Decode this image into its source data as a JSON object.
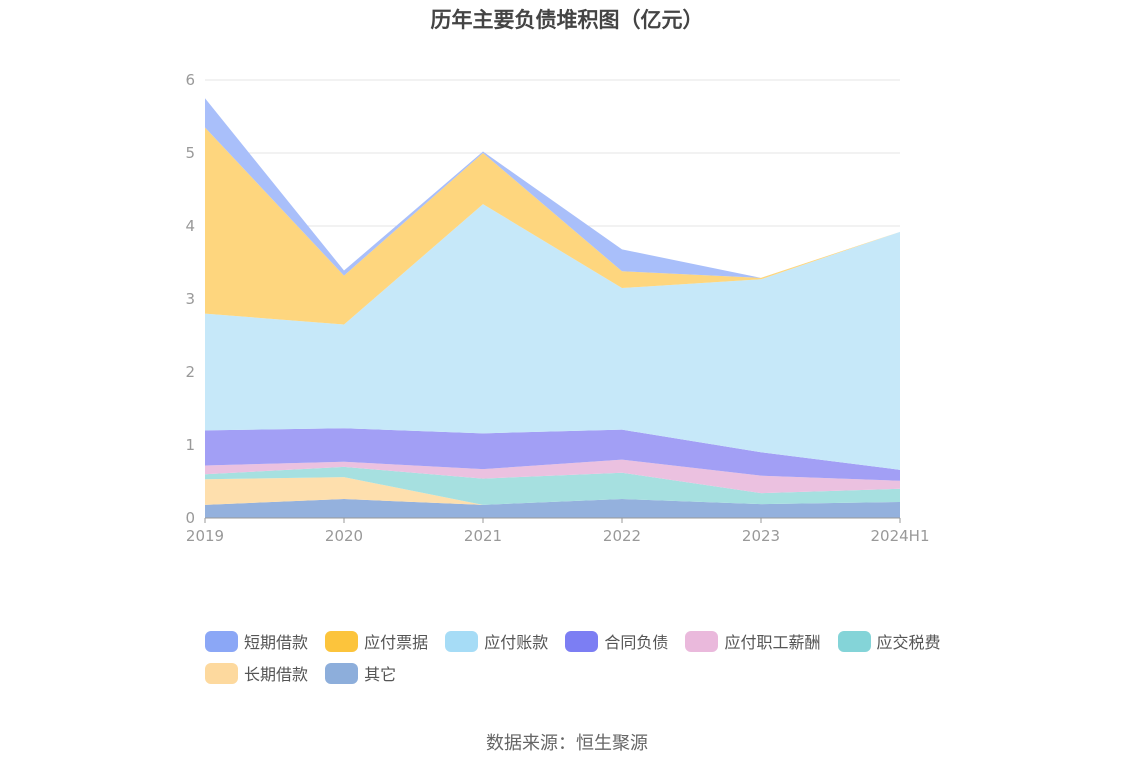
{
  "chart_data": {
    "type": "area",
    "stacked": true,
    "title": "历年主要负债堆积图（亿元）",
    "xlabel": "",
    "ylabel": "",
    "categories": [
      "2019",
      "2020",
      "2021",
      "2022",
      "2023",
      "2024H1"
    ],
    "ylim": [
      0,
      6
    ],
    "yticks": [
      "0",
      "1",
      "2",
      "3",
      "4",
      "5",
      "6"
    ],
    "grid": true,
    "legend_position": "bottom",
    "series": [
      {
        "name": "其它",
        "color": "#94b1dd",
        "values": [
          0.18,
          0.26,
          0.18,
          0.26,
          0.19,
          0.22
        ]
      },
      {
        "name": "长期借款",
        "color": "#fedfad",
        "values": [
          0.35,
          0.3,
          0,
          0,
          0,
          0
        ]
      },
      {
        "name": "应交税费",
        "color": "#a6e0e0",
        "values": [
          0.07,
          0.14,
          0.36,
          0.36,
          0.15,
          0.18
        ]
      },
      {
        "name": "应付职工薪酬",
        "color": "#ebc1e0",
        "values": [
          0.12,
          0.07,
          0.13,
          0.18,
          0.24,
          0.11
        ]
      },
      {
        "name": "合同负债",
        "color": "#a29ff5",
        "values": [
          0.48,
          0.46,
          0.49,
          0.41,
          0.32,
          0.15
        ]
      },
      {
        "name": "应付账款",
        "color": "#c6e8f9",
        "values": [
          1.6,
          1.42,
          3.14,
          1.94,
          2.37,
          3.26
        ]
      },
      {
        "name": "应付票据",
        "color": "#fed67e",
        "values": [
          2.55,
          0.67,
          0.7,
          0.23,
          0.02,
          0
        ]
      },
      {
        "name": "短期借款",
        "color": "#a9bffa",
        "values": [
          0.4,
          0.07,
          0.02,
          0.3,
          0,
          0
        ]
      }
    ]
  },
  "legend_items": [
    {
      "label": "短期借款",
      "color": "#8ba7f6"
    },
    {
      "label": "应付票据",
      "color": "#fcc43c"
    },
    {
      "label": "应付账款",
      "color": "#a6dcf6"
    },
    {
      "label": "合同负债",
      "color": "#7c7ef3"
    },
    {
      "label": "应付职工薪酬",
      "color": "#eab9dc"
    },
    {
      "label": "应交税费",
      "color": "#84d4d8"
    },
    {
      "label": "长期借款",
      "color": "#fdd99e"
    },
    {
      "label": "其它",
      "color": "#8daedb"
    }
  ],
  "footer": {
    "source": "数据来源：恒生聚源"
  }
}
